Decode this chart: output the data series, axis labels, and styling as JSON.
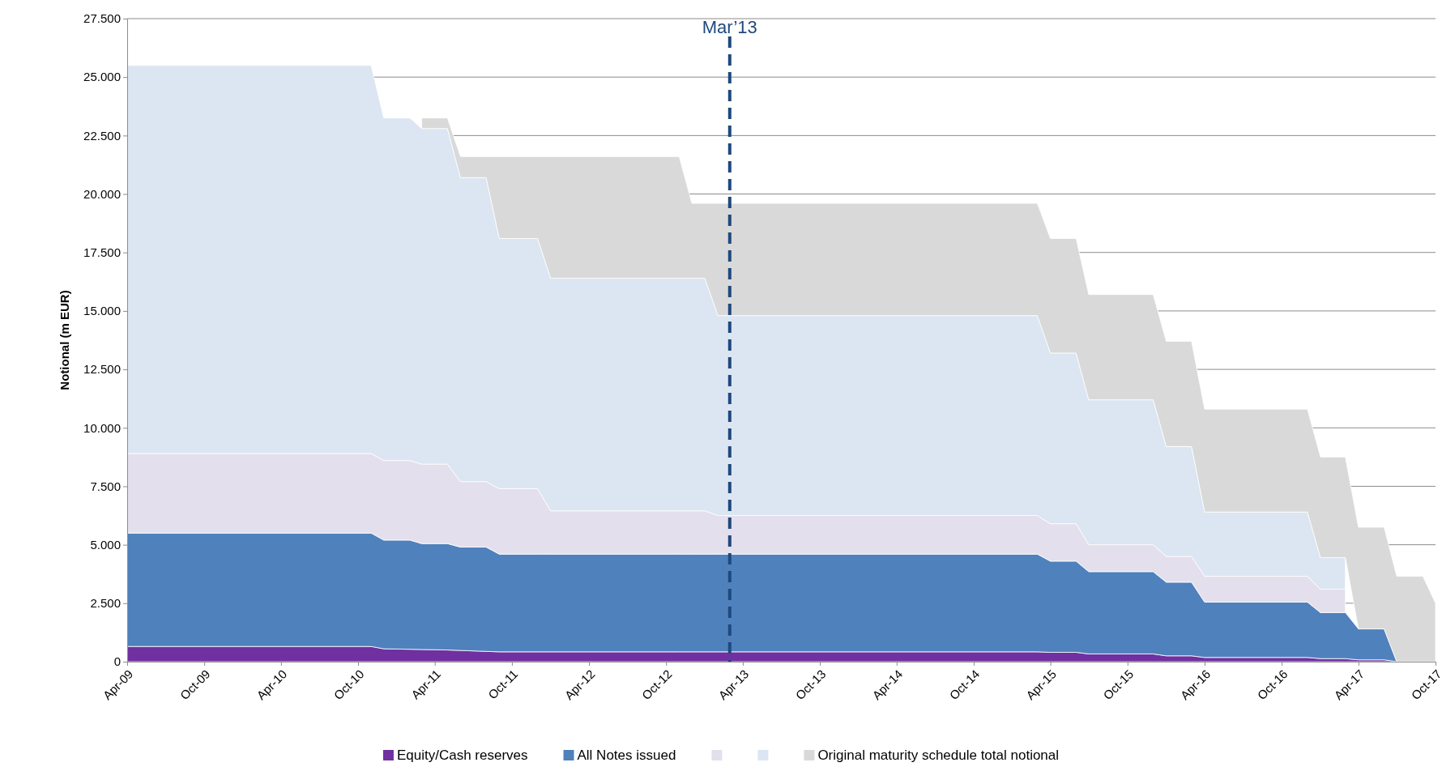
{
  "chart_data": {
    "type": "area",
    "stacked": true,
    "ylabel": "Notional (m EUR)",
    "x": [
      "2009-04",
      "2010-11",
      "2010-12",
      "2011-02",
      "2011-03",
      "2011-04",
      "2011-05",
      "2011-06",
      "2011-08",
      "2011-09",
      "2011-12",
      "2012-01",
      "2012-11",
      "2012-12",
      "2013-01",
      "2013-02",
      "2015-03",
      "2015-04",
      "2015-06",
      "2015-07",
      "2015-12",
      "2016-01",
      "2016-03",
      "2016-04",
      "2016-12",
      "2017-01",
      "2017-03",
      "2017-04",
      "2017-06",
      "2017-07",
      "2017-09",
      "2017-10"
    ],
    "series": [
      {
        "name": "Equity/Cash reserves",
        "color": "#7030a0",
        "values": [
          650,
          650,
          550,
          530,
          520,
          510,
          500,
          480,
          440,
          420,
          420,
          420,
          420,
          420,
          420,
          420,
          420,
          400,
          400,
          330,
          330,
          250,
          250,
          180,
          180,
          130,
          130,
          80,
          80,
          0,
          0,
          0
        ]
      },
      {
        "name": "All Notes issued",
        "color": "#4f81bd",
        "values": [
          4850,
          4850,
          4650,
          4670,
          4530,
          4540,
          4550,
          4420,
          4460,
          4180,
          4180,
          4180,
          4180,
          4180,
          4180,
          4180,
          4180,
          3900,
          3900,
          3520,
          3520,
          3150,
          3150,
          2370,
          2370,
          1970,
          1970,
          1320,
          1320,
          0,
          0,
          0
        ]
      },
      {
        "color": "#e4dfec",
        "values": [
          3400,
          3400,
          3400,
          3400,
          3400,
          3400,
          3400,
          2800,
          2800,
          2800,
          2800,
          1850,
          1850,
          1850,
          1850,
          1650,
          1650,
          1600,
          1600,
          1150,
          1150,
          1100,
          1100,
          1100,
          1100,
          1000,
          1000,
          null,
          null,
          null,
          null,
          null
        ]
      },
      {
        "color": "#dce6f2",
        "values": [
          16600,
          16600,
          14650,
          14650,
          14350,
          14350,
          14350,
          13000,
          13000,
          10700,
          10700,
          9950,
          9950,
          9950,
          9950,
          8550,
          8550,
          7300,
          7300,
          6200,
          6200,
          4700,
          4700,
          2750,
          2750,
          1350,
          1350,
          null,
          null,
          null,
          null,
          null
        ]
      },
      {
        "name": "Original maturity schedule total notional",
        "color": "#d9d9d9",
        "values": [
          null,
          null,
          null,
          null,
          450,
          450,
          450,
          900,
          900,
          3500,
          3500,
          5200,
          5200,
          3200,
          3200,
          4800,
          4800,
          4900,
          4900,
          4500,
          4500,
          4500,
          4500,
          4400,
          4400,
          4300,
          4300,
          4350,
          4350,
          3650,
          3650,
          2500
        ]
      }
    ],
    "xlim": [
      "2009-04",
      "2017-10"
    ],
    "xticks": [
      {
        "value": "2009-04",
        "label": "Apr-09"
      },
      {
        "value": "2009-10",
        "label": "Oct-09"
      },
      {
        "value": "2010-04",
        "label": "Apr-10"
      },
      {
        "value": "2010-10",
        "label": "Oct-10"
      },
      {
        "value": "2011-04",
        "label": "Apr-11"
      },
      {
        "value": "2011-10",
        "label": "Oct-11"
      },
      {
        "value": "2012-04",
        "label": "Apr-12"
      },
      {
        "value": "2012-10",
        "label": "Oct-12"
      },
      {
        "value": "2013-04",
        "label": "Apr-13"
      },
      {
        "value": "2013-10",
        "label": "Oct-13"
      },
      {
        "value": "2014-04",
        "label": "Apr-14"
      },
      {
        "value": "2014-10",
        "label": "Oct-14"
      },
      {
        "value": "2015-04",
        "label": "Apr-15"
      },
      {
        "value": "2015-10",
        "label": "Oct-15"
      },
      {
        "value": "2016-04",
        "label": "Apr-16"
      },
      {
        "value": "2016-10",
        "label": "Oct-16"
      },
      {
        "value": "2017-04",
        "label": "Apr-17"
      },
      {
        "value": "2017-10",
        "label": "Oct-17"
      }
    ],
    "ylim": [
      0,
      27500
    ],
    "yticks": [
      0,
      {
        "value": 2500,
        "label": "2.500"
      },
      {
        "value": 5000,
        "label": "5.000"
      },
      {
        "value": 7500,
        "label": "7.500"
      },
      {
        "value": 10000,
        "label": "10.000"
      },
      {
        "value": 12500,
        "label": "12.500"
      },
      {
        "value": 15000,
        "label": "15.000"
      },
      {
        "value": 17500,
        "label": "17.500"
      },
      {
        "value": 20000,
        "label": "20.000"
      },
      {
        "value": 22500,
        "label": "22.500"
      },
      {
        "value": 25000,
        "label": "25.000"
      },
      {
        "value": 27500,
        "label": "27.500"
      }
    ],
    "grid": "y",
    "legend": "bottom",
    "ref_lines": [
      {
        "axis": "x",
        "value": "2013-03",
        "label": "Mar’13",
        "color": "#1f497d",
        "line_style": "dashed"
      }
    ]
  }
}
